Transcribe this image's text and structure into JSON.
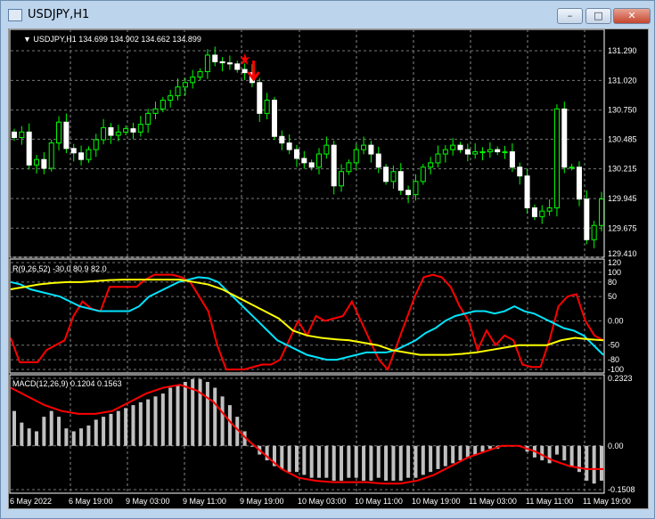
{
  "window": {
    "title": "USDJPY,H1",
    "buttons": {
      "minimize": "–",
      "maximize": "□",
      "close": "✕"
    }
  },
  "chart_data": [
    {
      "type": "candlestick",
      "label": "USDJPY,H1",
      "ohlc_label": "134.699 134.902 134.662 134.899",
      "y_ticks": [
        "131.290",
        "131.020",
        "130.750",
        "130.485",
        "130.215",
        "129.945",
        "129.675",
        "129.410"
      ],
      "ylim": [
        129.41,
        131.29
      ],
      "bull_color": "#00ff00",
      "bear_color": "#ffffff",
      "close": [
        130.5,
        130.55,
        130.25,
        130.3,
        130.22,
        130.45,
        130.64,
        130.4,
        130.36,
        130.3,
        130.39,
        130.48,
        130.59,
        130.52,
        130.55,
        130.58,
        130.55,
        130.62,
        130.72,
        130.76,
        130.84,
        130.88,
        130.96,
        131.0,
        131.05,
        131.1,
        131.25,
        131.19,
        131.18,
        131.17,
        131.12,
        131.09,
        131.0,
        130.72,
        130.84,
        130.51,
        130.45,
        130.39,
        130.31,
        130.27,
        130.23,
        130.35,
        130.43,
        130.06,
        130.19,
        130.27,
        130.39,
        130.43,
        130.35,
        130.23,
        130.1,
        130.19,
        130.02,
        129.98,
        130.1,
        130.23,
        130.27,
        130.35,
        130.39,
        130.43,
        130.39,
        130.35,
        130.37,
        130.37,
        130.39,
        130.37,
        130.37,
        130.23,
        130.15,
        129.86,
        129.78,
        129.83,
        129.86,
        130.76,
        130.23,
        130.23,
        129.94,
        129.57,
        129.7,
        129.94
      ],
      "annotations": [
        {
          "type": "sell-arrow",
          "color": "#ff0000"
        },
        {
          "type": "star",
          "color": "#ff0000"
        }
      ]
    },
    {
      "type": "line",
      "label": "R(9,26,52) -30.0 80.9 82.0",
      "y_ticks": [
        "120",
        "100",
        "80",
        "50",
        "0.00",
        "-50",
        "-80",
        "-100"
      ],
      "ylim": [
        -100,
        120
      ],
      "series": [
        {
          "color": "#ff0000",
          "values": [
            -35,
            -85,
            -85,
            -85,
            -60,
            -50,
            -40,
            10,
            40,
            25,
            20,
            70,
            70,
            70,
            70,
            85,
            95,
            95,
            95,
            90,
            80,
            50,
            20,
            -50,
            -100,
            -100,
            -100,
            -95,
            -90,
            -90,
            -80,
            -40,
            0,
            -30,
            10,
            0,
            5,
            10,
            40,
            0,
            -40,
            -80,
            -100,
            -50,
            0,
            50,
            90,
            95,
            90,
            70,
            30,
            0,
            -60,
            -20,
            -50,
            -30,
            -40,
            -90,
            -95,
            -95,
            -40,
            30,
            50,
            55,
            0,
            -30,
            -40
          ]
        },
        {
          "color": "#00e5ff",
          "values": [
            80,
            75,
            65,
            60,
            55,
            50,
            40,
            30,
            25,
            20,
            20,
            20,
            20,
            30,
            50,
            60,
            70,
            80,
            85,
            90,
            88,
            80,
            60,
            40,
            20,
            0,
            -20,
            -40,
            -50,
            -60,
            -70,
            -75,
            -80,
            -80,
            -75,
            -70,
            -65,
            -65,
            -65,
            -60,
            -50,
            -40,
            -25,
            -15,
            0,
            10,
            15,
            20,
            20,
            15,
            20,
            30,
            20,
            15,
            5,
            -5,
            -15,
            -20,
            -30,
            -50,
            -70
          ]
        },
        {
          "color": "#ffff00",
          "values": [
            65,
            70,
            75,
            78,
            80,
            80,
            82,
            84,
            85,
            85,
            85,
            85,
            85,
            80,
            75,
            65,
            50,
            35,
            20,
            5,
            -20,
            -30,
            -35,
            -38,
            -40,
            -45,
            -50,
            -60,
            -65,
            -70,
            -70,
            -70,
            -68,
            -65,
            -60,
            -55,
            -50,
            -50,
            -50,
            -40,
            -35,
            -38,
            -40
          ]
        }
      ]
    },
    {
      "type": "bar+line",
      "label": "MACD(12,26,9) 0.1204 0.1563",
      "y_ticks": [
        "0.2323",
        "0.00",
        "-0.1508"
      ],
      "ylim": [
        -0.1508,
        0.2323
      ],
      "histogram_color": "#c0c0c0",
      "signal_color": "#ff0000",
      "histogram": [
        0.12,
        0.08,
        0.06,
        0.05,
        0.1,
        0.12,
        0.1,
        0.06,
        0.05,
        0.06,
        0.07,
        0.09,
        0.1,
        0.11,
        0.12,
        0.13,
        0.14,
        0.15,
        0.16,
        0.17,
        0.18,
        0.2,
        0.21,
        0.22,
        0.23,
        0.23,
        0.22,
        0.2,
        0.17,
        0.14,
        0.1,
        0.05,
        0.0,
        -0.03,
        -0.05,
        -0.07,
        -0.08,
        -0.09,
        -0.09,
        -0.1,
        -0.11,
        -0.11,
        -0.11,
        -0.12,
        -0.12,
        -0.11,
        -0.11,
        -0.12,
        -0.12,
        -0.11,
        -0.12,
        -0.12,
        -0.12,
        -0.11,
        -0.11,
        -0.1,
        -0.09,
        -0.08,
        -0.07,
        -0.06,
        -0.05,
        -0.04,
        -0.03,
        -0.02,
        -0.01,
        -0.01,
        0.0,
        0.0,
        0.0,
        -0.02,
        -0.04,
        -0.05,
        -0.06,
        -0.03,
        -0.05,
        -0.07,
        -0.09,
        -0.12,
        -0.13,
        -0.12
      ],
      "signal": [
        0.2,
        0.17,
        0.14,
        0.12,
        0.11,
        0.11,
        0.12,
        0.15,
        0.18,
        0.2,
        0.21,
        0.19,
        0.15,
        0.08,
        0.02,
        -0.03,
        -0.08,
        -0.11,
        -0.12,
        -0.125,
        -0.125,
        -0.125,
        -0.13,
        -0.13,
        -0.12,
        -0.1,
        -0.07,
        -0.04,
        -0.02,
        0.0,
        0.0,
        -0.02,
        -0.05,
        -0.07,
        -0.08,
        -0.08
      ]
    }
  ],
  "time_axis": [
    "6 May 2022",
    "6 May 19:00",
    "9 May 03:00",
    "9 May 11:00",
    "9 May 19:00",
    "10 May 03:00",
    "10 May 11:00",
    "10 May 19:00",
    "11 May 03:00",
    "11 May 11:00",
    "11 May 19:00"
  ]
}
